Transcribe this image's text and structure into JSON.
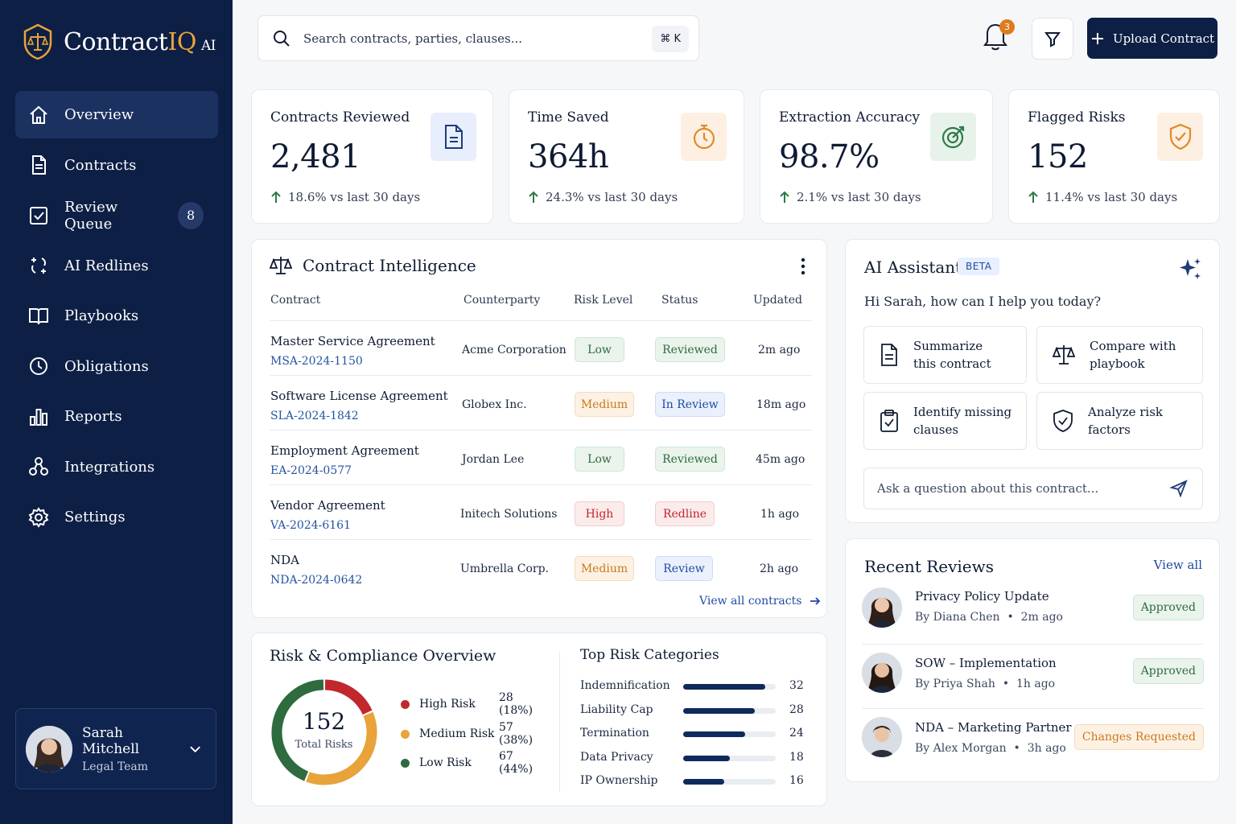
{
  "app": {
    "logo_main": "Contract",
    "logo_iq": "IQ",
    "logo_ai": "AI"
  },
  "sidebar": {
    "items": [
      {
        "label": "Overview",
        "icon": "home-icon",
        "active": true
      },
      {
        "label": "Contracts",
        "icon": "document-icon"
      },
      {
        "label": "Review Queue",
        "icon": "checkbox-icon",
        "badge": "8"
      },
      {
        "label": "AI Redlines",
        "icon": "sparkle-edit-icon"
      },
      {
        "label": "Playbooks",
        "icon": "book-icon"
      },
      {
        "label": "Obligations",
        "icon": "clock-icon"
      },
      {
        "label": "Reports",
        "icon": "bar-chart-icon"
      },
      {
        "label": "Integrations",
        "icon": "nodes-icon"
      },
      {
        "label": "Settings",
        "icon": "gear-icon"
      }
    ],
    "user": {
      "name": "Sarah Mitchell",
      "role": "Legal Team"
    }
  },
  "header": {
    "search_placeholder": "Search contracts, parties, clauses...",
    "shortcut": "⌘ K",
    "notification_count": "3",
    "upload_label": "Upload Contract"
  },
  "kpis": [
    {
      "title": "Contracts Reviewed",
      "value": "2,481",
      "delta": "18.6% vs last 30 days",
      "icon": "document-icon",
      "icon_bg": "#e8eefb",
      "icon_color": "#1e3d7a"
    },
    {
      "title": "Time Saved",
      "value": "364h",
      "delta": "24.3% vs last 30 days",
      "icon": "timer-icon",
      "icon_bg": "#fdf0e2",
      "icon_color": "#e0892a"
    },
    {
      "title": "Extraction Accuracy",
      "value": "98.7%",
      "delta": "2.1% vs last 30 days",
      "icon": "target-icon",
      "icon_bg": "#e6f2ea",
      "icon_color": "#2f7a45"
    },
    {
      "title": "Flagged Risks",
      "value": "152",
      "delta": "11.4% vs last 30 days",
      "icon": "shield-check-icon",
      "icon_bg": "#fdf0e2",
      "icon_color": "#e0892a"
    }
  ],
  "intelligence": {
    "title": "Contract Intelligence",
    "columns": [
      "Contract",
      "Counterparty",
      "Risk Level",
      "Status",
      "Updated"
    ],
    "rows": [
      {
        "name": "Master Service Agreement",
        "id": "MSA-2024-1150",
        "party": "Acme Corporation",
        "risk": "Low",
        "status": "Reviewed",
        "updated": "2m ago"
      },
      {
        "name": "Software License Agreement",
        "id": "SLA-2024-1842",
        "party": "Globex Inc.",
        "risk": "Medium",
        "status": "In Review",
        "updated": "18m ago"
      },
      {
        "name": "Employment Agreement",
        "id": "EA-2024-0577",
        "party": "Jordan Lee",
        "risk": "Low",
        "status": "Reviewed",
        "updated": "45m ago"
      },
      {
        "name": "Vendor Agreement",
        "id": "VA-2024-6161",
        "party": "Initech Solutions",
        "risk": "High",
        "status": "Redline",
        "updated": "1h ago"
      },
      {
        "name": "NDA",
        "id": "NDA-2024-0642",
        "party": "Umbrella Corp.",
        "risk": "Medium",
        "status": "Review",
        "updated": "2h ago"
      }
    ],
    "view_all": "View all contracts"
  },
  "assistant": {
    "title": "AI Assistant",
    "badge": "BETA",
    "greeting": "Hi Sarah, how can I help you today?",
    "actions": [
      {
        "line1": "Summarize",
        "line2": "this contract",
        "icon": "document-icon"
      },
      {
        "line1": "Compare with",
        "line2": "playbook",
        "icon": "scale-icon"
      },
      {
        "line1": "Identify missing",
        "line2": "clauses",
        "icon": "clipboard-check-icon"
      },
      {
        "line1": "Analyze risk",
        "line2": "factors",
        "icon": "shield-check-icon"
      }
    ],
    "ask_placeholder": "Ask a question about this contract..."
  },
  "recent": {
    "title": "Recent Reviews",
    "view_all": "View all",
    "items": [
      {
        "title": "Privacy Policy Update",
        "by": "By Diana Chen",
        "time": "2m ago",
        "status": "Approved"
      },
      {
        "title": "SOW – Implementation",
        "by": "By Priya Shah",
        "time": "1h ago",
        "status": "Approved"
      },
      {
        "title": "NDA – Marketing Partner",
        "by": "By Alex Morgan",
        "time": "3h ago",
        "status": "Changes Requested"
      }
    ]
  },
  "risk": {
    "title": "Risk & Compliance Overview",
    "total": "152",
    "total_label": "Total Risks",
    "legend": [
      {
        "label": "High Risk",
        "value": "28 (18%)",
        "color": "#c0282d"
      },
      {
        "label": "Medium Risk",
        "value": "57 (38%)",
        "color": "#e8a33a"
      },
      {
        "label": "Low Risk",
        "value": "67 (44%)",
        "color": "#2e6b3e"
      }
    ],
    "categories_title": "Top Risk Categories"
  },
  "chart_data": [
    {
      "type": "pie",
      "categories": [
        "High Risk",
        "Medium Risk",
        "Low Risk"
      ],
      "values": [
        28,
        57,
        67
      ],
      "title": ""
    },
    {
      "type": "bar",
      "title": "Top Risk Categories",
      "categories": [
        "Indemnification",
        "Liability Cap",
        "Termination",
        "Data Privacy",
        "IP Ownership"
      ],
      "values": [
        32,
        28,
        24,
        18,
        16
      ],
      "xlim": [
        0,
        36
      ]
    }
  ]
}
